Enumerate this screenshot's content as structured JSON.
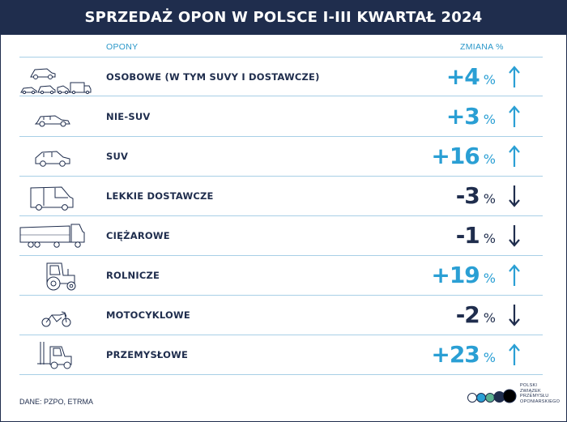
{
  "title": "SPRZEDAŻ OPON W POLSCE I-III KWARTAŁ 2024",
  "columns": {
    "tyres": "OPONY",
    "change": "ZMIANA %"
  },
  "chart_data": {
    "type": "table",
    "categories": [
      "OSOBOWE (W TYM SUVY I DOSTAWCZE)",
      "NIE-SUV",
      "SUV",
      "LEKKIE DOSTAWCZE",
      "CIĘŻAROWE",
      "ROLNICZE",
      "MOTOCYKLOWE",
      "PRZEMYSŁOWE"
    ],
    "values": [
      4,
      3,
      16,
      -3,
      -1,
      19,
      -2,
      23
    ],
    "value_labels": [
      "+4",
      "+3",
      "+16",
      "-3",
      "-1",
      "+19",
      "-2",
      "+23"
    ],
    "unit": "%",
    "colors": {
      "up": "#2a9fd4",
      "down": "#1f2d4d"
    }
  },
  "rows": [
    {
      "icon": "car-van-group-icon",
      "label": "OSOBOWE (W TYM SUVY I DOSTAWCZE)",
      "value": "+4",
      "unit": "%",
      "trend": "up",
      "arrow": "↑"
    },
    {
      "icon": "sedan-car-icon",
      "label": "NIE-SUV",
      "value": "+3",
      "unit": "%",
      "trend": "up",
      "arrow": "↑"
    },
    {
      "icon": "suv-car-icon",
      "label": "SUV",
      "value": "+16",
      "unit": "%",
      "trend": "up",
      "arrow": "↑"
    },
    {
      "icon": "delivery-van-icon",
      "label": "LEKKIE DOSTAWCZE",
      "value": "-3",
      "unit": "%",
      "trend": "down",
      "arrow": "↓"
    },
    {
      "icon": "dump-truck-icon",
      "label": "CIĘŻAROWE",
      "value": "-1",
      "unit": "%",
      "trend": "down",
      "arrow": "↓"
    },
    {
      "icon": "tractor-icon",
      "label": "ROLNICZE",
      "value": "+19",
      "unit": "%",
      "trend": "up",
      "arrow": "↑"
    },
    {
      "icon": "motorcycle-icon",
      "label": "MOTOCYKLOWE",
      "value": "-2",
      "unit": "%",
      "trend": "down",
      "arrow": "↓"
    },
    {
      "icon": "forklift-icon",
      "label": "PRZEMYSŁOWE",
      "value": "+23",
      "unit": "%",
      "trend": "up",
      "arrow": "↑"
    }
  ],
  "source": "DANE: PZPO, ETRMA",
  "logo": {
    "lines": [
      "POLSKI",
      "ZWIĄZEK",
      "PRZEMYSŁU",
      "OPONIARSKIEGO"
    ],
    "circle_colors": [
      "#ffffff",
      "#2a9fd4",
      "#5ab08f",
      "#1f2d4d",
      "#000000"
    ]
  }
}
